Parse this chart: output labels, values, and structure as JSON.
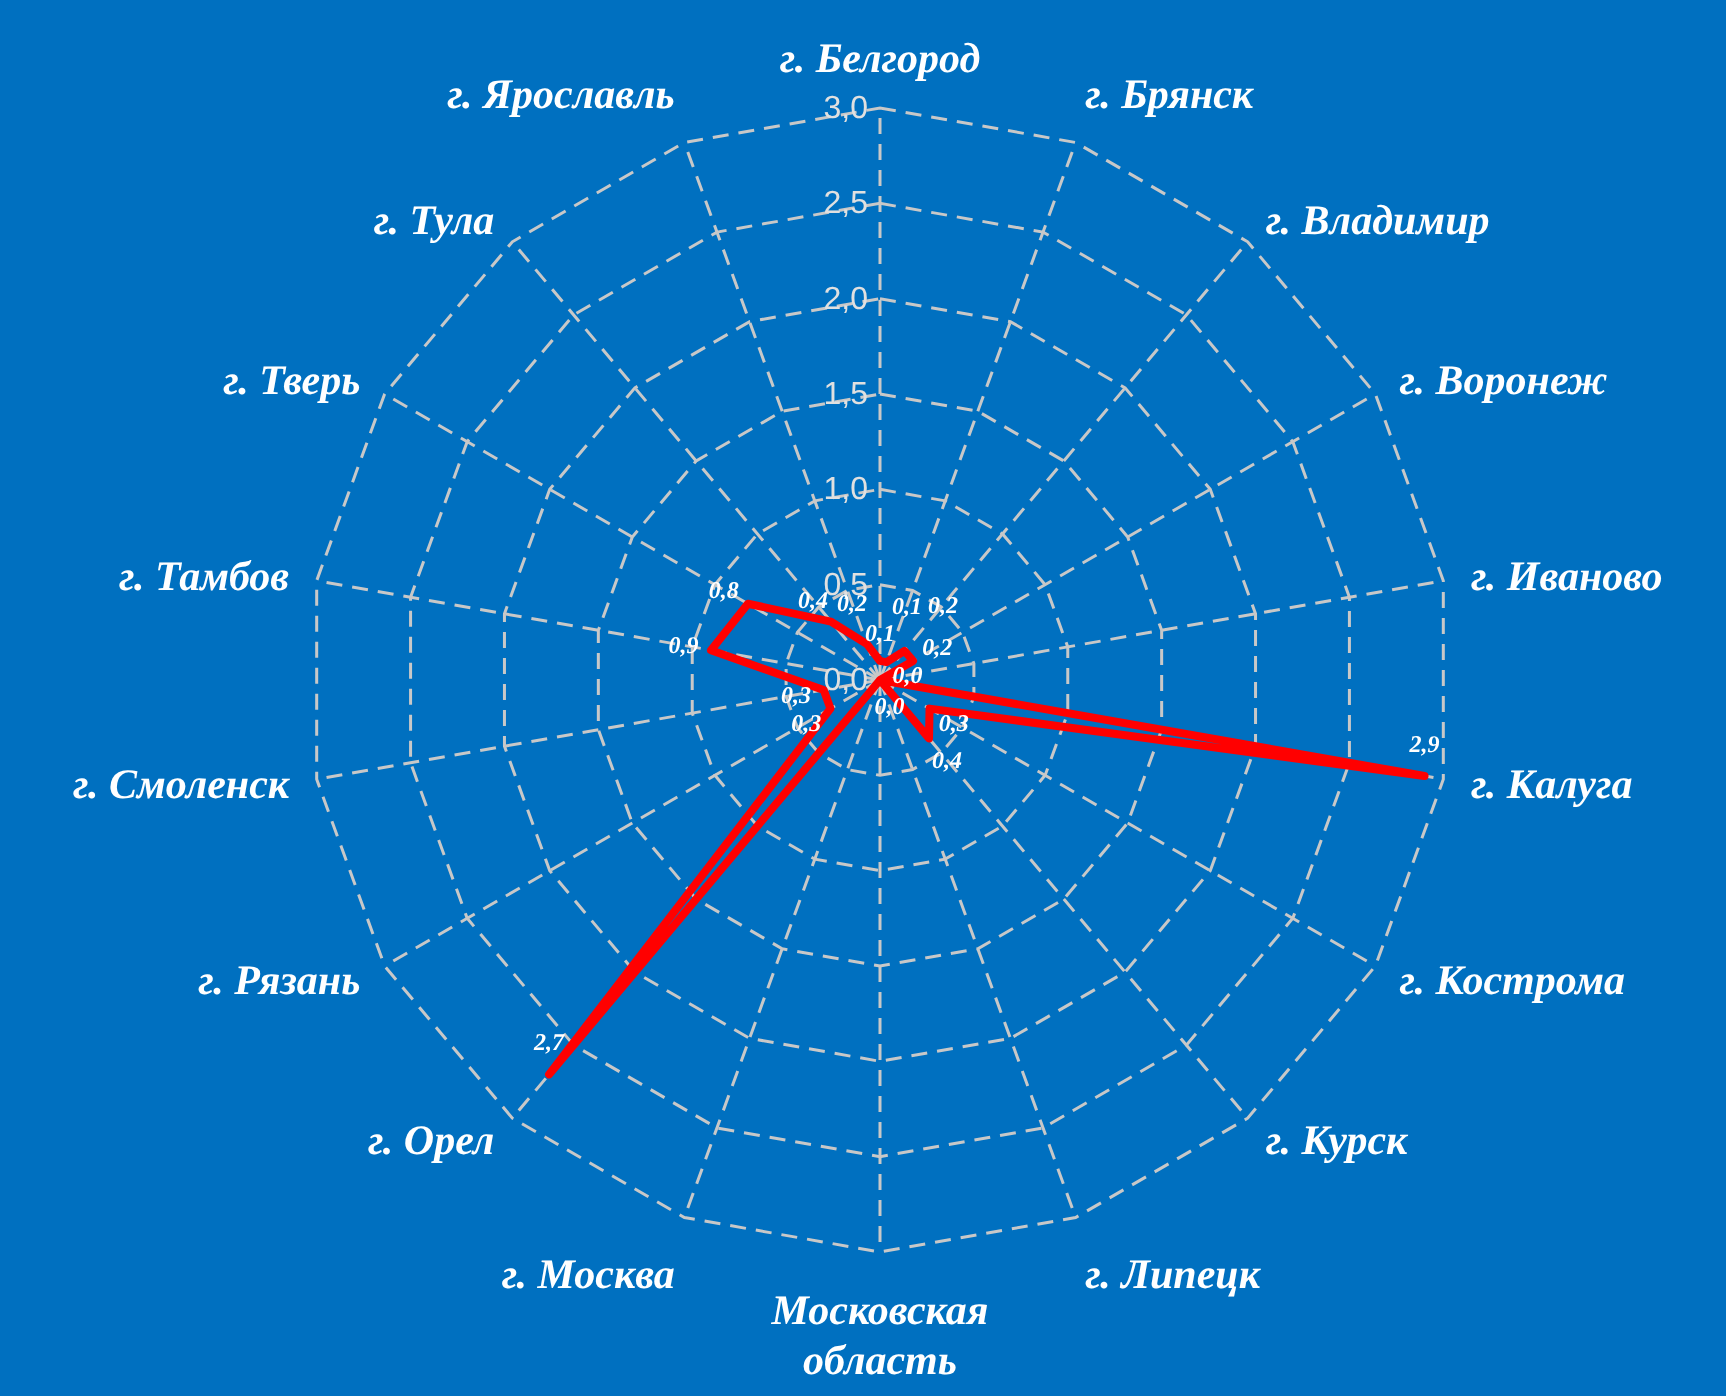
{
  "chart_data": {
    "type": "radar",
    "categories": [
      "г. Белгород",
      "г. Брянск",
      "г. Владимир",
      "г. Воронеж",
      "г. Иваново",
      "г. Калуга",
      "г. Кострома",
      "г. Курск",
      "г. Липецк",
      "Московская область",
      "г. Москва",
      "г. Орел",
      "г. Рязань",
      "г. Смоленск",
      "г. Тамбов",
      "г. Тверь",
      "г. Тула",
      "г. Ярославль"
    ],
    "series": [
      {
        "color": "#ff0000",
        "values": [
          0.1,
          0.1,
          0.2,
          0.2,
          0.0,
          2.9,
          0.3,
          0.4,
          0.0,
          null,
          null,
          2.7,
          0.3,
          0.3,
          0.9,
          0.8,
          0.4,
          0.2
        ],
        "value_labels": [
          "0,1",
          "0,1",
          "0,2",
          "0,2",
          "0,0",
          "2,9",
          "0,3",
          "0,4",
          "0,0",
          null,
          null,
          "2,7",
          "0,3",
          "0,3",
          "0,9",
          "0,8",
          "0,4",
          "0,2"
        ]
      }
    ],
    "ylim": [
      0,
      3
    ],
    "yticks": [
      {
        "value": 0,
        "label": "0,0"
      },
      {
        "value": 0.5,
        "label": "0,5"
      },
      {
        "value": 1,
        "label": "1,0"
      },
      {
        "value": 1.5,
        "label": "1,5"
      },
      {
        "value": 2,
        "label": "2,0"
      },
      {
        "value": 2.5,
        "label": "2,5"
      },
      {
        "value": 3,
        "label": "3,0"
      }
    ],
    "grid": true
  }
}
